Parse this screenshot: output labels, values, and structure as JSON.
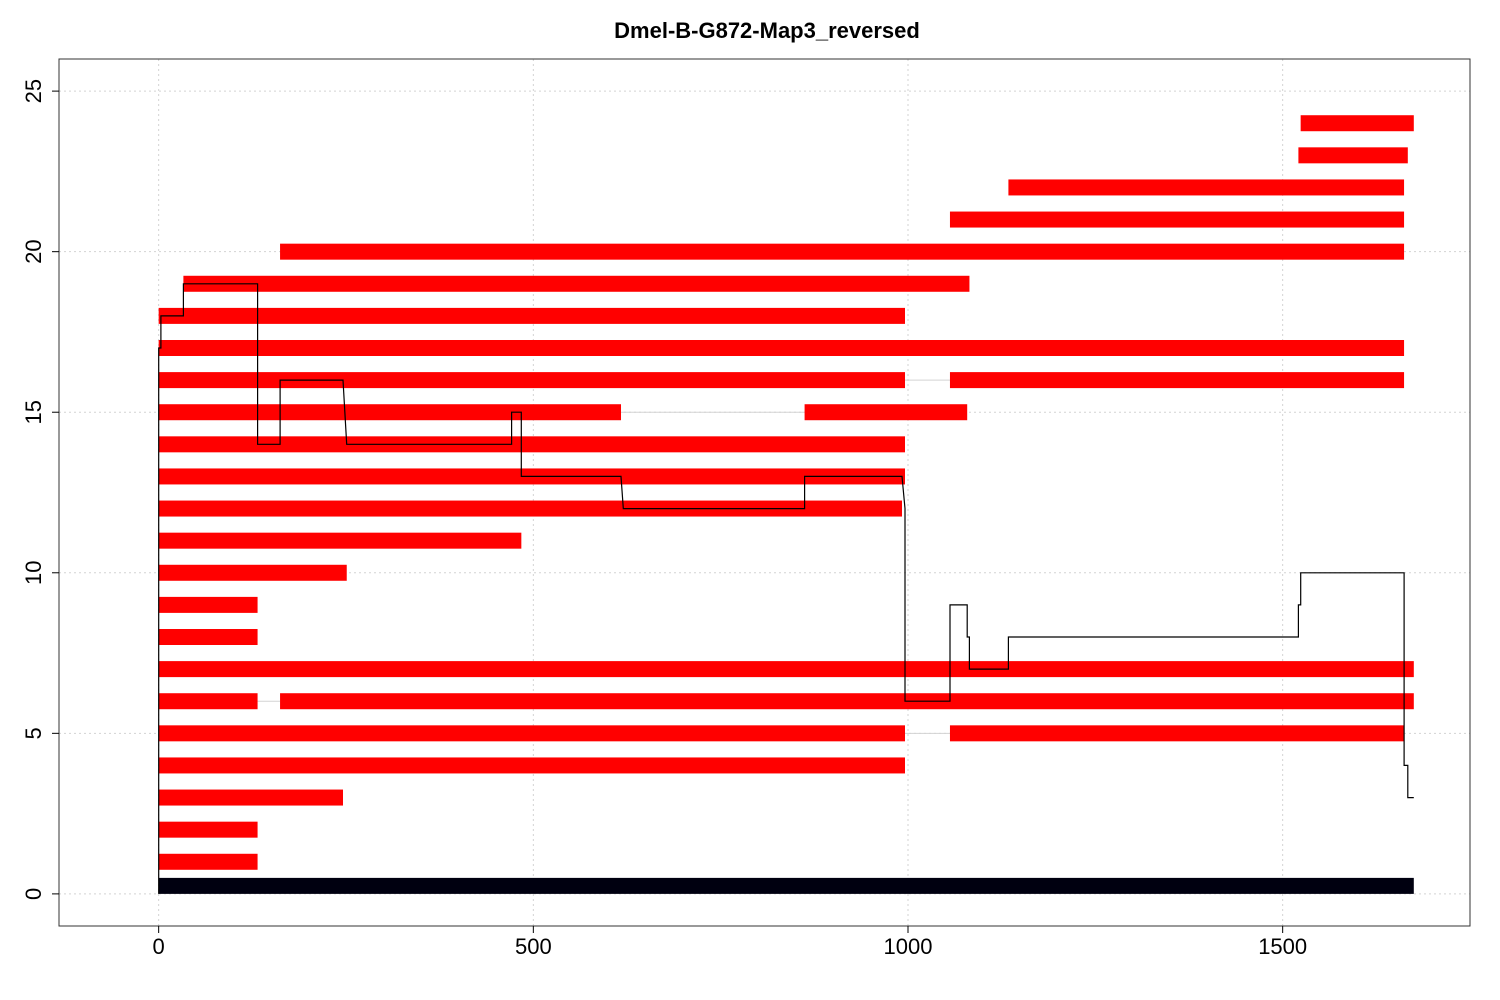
{
  "chart_data": {
    "type": "bar",
    "title": "Dmel-B-G872-Map3_reversed",
    "xlabel": "",
    "ylabel": "",
    "xlim": [
      -133,
      1750
    ],
    "ylim": [
      -1,
      26
    ],
    "x_ticks": [
      0,
      500,
      1000,
      1500
    ],
    "x_tick_labels": [
      "0",
      "500",
      "1000",
      "1500"
    ],
    "y_ticks": [
      0,
      5,
      10,
      15,
      20,
      25
    ],
    "y_tick_labels": [
      "0",
      "5",
      "10",
      "15",
      "20",
      "25"
    ],
    "grid": true,
    "colors": {
      "read": "#ff0000",
      "reference": "#000010",
      "coverage": "#000000",
      "gap_line": "#d3d3d3"
    },
    "reference_bar": {
      "name": "reference",
      "start": 0,
      "end": 1675,
      "y": 0
    },
    "reads": [
      {
        "y": 1,
        "segments": [
          [
            0,
            132
          ]
        ]
      },
      {
        "y": 2,
        "segments": [
          [
            0,
            132
          ]
        ]
      },
      {
        "y": 3,
        "segments": [
          [
            0,
            246
          ]
        ]
      },
      {
        "y": 4,
        "segments": [
          [
            0,
            996
          ]
        ]
      },
      {
        "y": 5,
        "segments": [
          [
            0,
            996
          ],
          [
            1056,
            1662
          ]
        ]
      },
      {
        "y": 6,
        "segments": [
          [
            0,
            132
          ],
          [
            162,
            1675
          ]
        ]
      },
      {
        "y": 7,
        "segments": [
          [
            0,
            1675
          ]
        ]
      },
      {
        "y": 8,
        "segments": [
          [
            0,
            132
          ]
        ]
      },
      {
        "y": 9,
        "segments": [
          [
            0,
            132
          ]
        ]
      },
      {
        "y": 10,
        "segments": [
          [
            0,
            251
          ]
        ]
      },
      {
        "y": 11,
        "segments": [
          [
            0,
            484
          ]
        ]
      },
      {
        "y": 12,
        "segments": [
          [
            0,
            992
          ]
        ]
      },
      {
        "y": 13,
        "segments": [
          [
            0,
            996
          ]
        ]
      },
      {
        "y": 14,
        "segments": [
          [
            0,
            996
          ]
        ]
      },
      {
        "y": 15,
        "segments": [
          [
            0,
            617
          ],
          [
            862,
            1079
          ]
        ]
      },
      {
        "y": 16,
        "segments": [
          [
            0,
            996
          ],
          [
            1056,
            1662
          ]
        ]
      },
      {
        "y": 17,
        "segments": [
          [
            0,
            1662
          ]
        ]
      },
      {
        "y": 18,
        "segments": [
          [
            0,
            996
          ]
        ]
      },
      {
        "y": 19,
        "segments": [
          [
            33,
            1082
          ]
        ]
      },
      {
        "y": 20,
        "segments": [
          [
            162,
            1662
          ]
        ]
      },
      {
        "y": 21,
        "segments": [
          [
            1056,
            1662
          ]
        ]
      },
      {
        "y": 22,
        "segments": [
          [
            1134,
            1662
          ]
        ]
      },
      {
        "y": 23,
        "segments": [
          [
            1521,
            1667
          ]
        ]
      },
      {
        "y": 24,
        "segments": [
          [
            1524,
            1675
          ]
        ]
      }
    ],
    "coverage": {
      "name": "coverage",
      "x": [
        0,
        0,
        3,
        3,
        33,
        33,
        132,
        132,
        162,
        162,
        246,
        251,
        471,
        471,
        484,
        484,
        617,
        620,
        862,
        862,
        992,
        996,
        996,
        1056,
        1056,
        1079,
        1079,
        1082,
        1082,
        1134,
        1134,
        1521,
        1521,
        1524,
        1524,
        1662,
        1662,
        1667,
        1667,
        1675
      ],
      "y": [
        0,
        17,
        17,
        18,
        18,
        19,
        19,
        14,
        14,
        16,
        16,
        14,
        14,
        15,
        15,
        13,
        13,
        12,
        12,
        13,
        13,
        12,
        6,
        6,
        9,
        9,
        8,
        8,
        7,
        7,
        8,
        8,
        9,
        9,
        10,
        10,
        4,
        4,
        3,
        3
      ]
    }
  }
}
